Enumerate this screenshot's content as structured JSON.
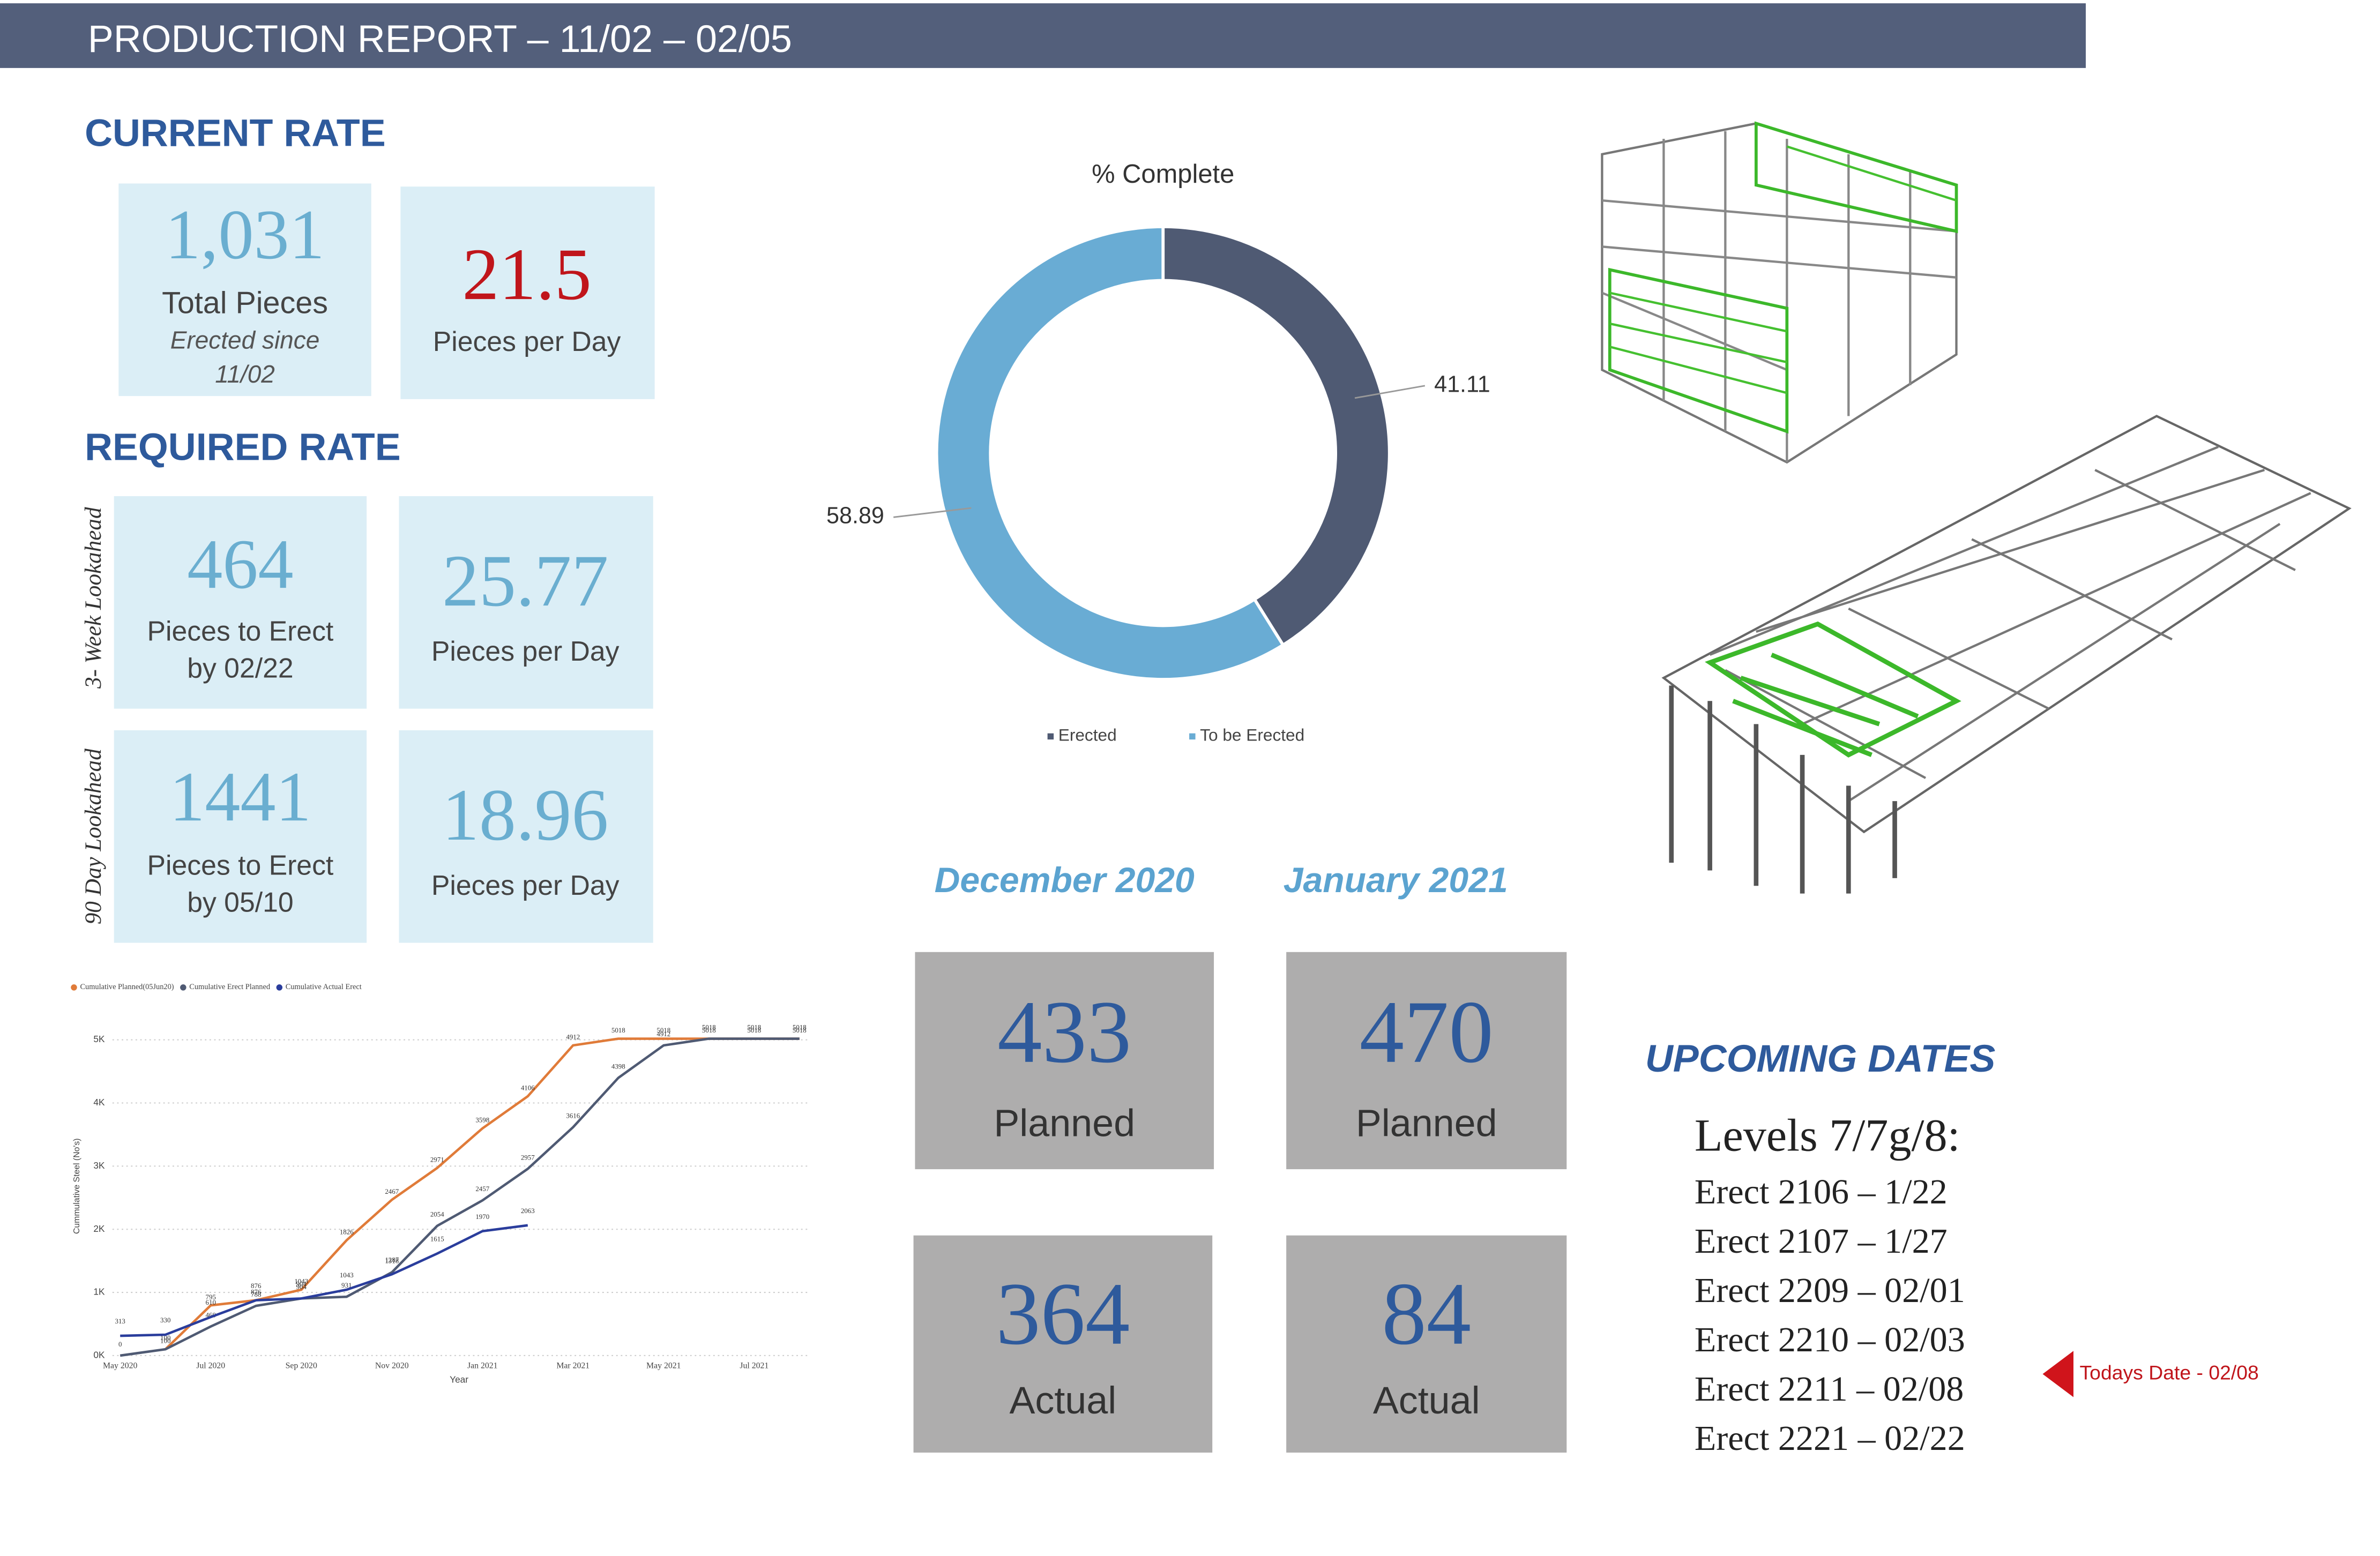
{
  "header": {
    "title": "PRODUCTION REPORT – 11/02 – 02/05"
  },
  "current_rate": {
    "title": "CURRENT RATE",
    "total": {
      "value": "1,031",
      "label": "Total Pieces",
      "note": [
        "Erected since",
        "11/02"
      ]
    },
    "per_day": {
      "value": "21.5",
      "label": "Pieces per Day"
    }
  },
  "required_rate": {
    "title": "REQUIRED RATE",
    "rows": [
      {
        "side_label": "3- Week Lookahead",
        "pieces": {
          "value": "464",
          "label": [
            "Pieces to Erect",
            "by 02/22"
          ]
        },
        "per_day": {
          "value": "25.77",
          "label": "Pieces per Day"
        }
      },
      {
        "side_label": "90 Day Lookahead",
        "pieces": {
          "value": "1441",
          "label": [
            "Pieces to Erect",
            "by 05/10"
          ]
        },
        "per_day": {
          "value": "18.96",
          "label": "Pieces per Day"
        }
      }
    ]
  },
  "monthly": [
    {
      "month": "December 2020",
      "planned": {
        "value": "433",
        "label": "Planned"
      },
      "actual": {
        "value": "364",
        "label": "Actual"
      }
    },
    {
      "month": "January 2021",
      "planned": {
        "value": "470",
        "label": "Planned"
      },
      "actual": {
        "value": "84",
        "label": "Actual"
      }
    }
  ],
  "upcoming": {
    "title": "UPCOMING DATES",
    "heading": "Levels 7/7g/8:",
    "items": [
      "Erect 2106 – 1/22",
      "Erect 2107 – 1/27",
      "Erect 2209 – 02/01",
      "Erect 2210 – 02/03",
      "Erect 2211 – 02/08",
      "Erect 2221 – 02/22"
    ],
    "today": "Todays Date - 02/08"
  },
  "chart_data": [
    {
      "type": "donut",
      "title": "% Complete",
      "categories": [
        "Erected",
        "To be Erected"
      ],
      "values": [
        41.11,
        58.89
      ],
      "colors": [
        "#4f5a73",
        "#69acd4"
      ],
      "legend": "bottom"
    },
    {
      "type": "line",
      "x_label": "Year",
      "y_label": "Cummulative Steel (No's)",
      "categories": [
        "May 2020",
        null,
        "Jul 2020",
        null,
        "Sep 2020",
        null,
        "Nov 2020",
        null,
        "Jan 2021",
        null,
        "Mar 2021",
        null,
        "May 2021",
        null,
        "Jul 2021",
        null
      ],
      "series": [
        {
          "name": "Cumulative Planned(05Jun20)",
          "color": "#e07b39",
          "values": [
            null,
            100,
            795,
            876,
            1043,
            1826,
            2467,
            2971,
            3598,
            4106,
            4912,
            5018,
            5018,
            5018,
            5018,
            5018
          ]
        },
        {
          "name": "Cumulative Erect Planned",
          "color": "#4f5a73",
          "values": [
            0,
            100,
            460,
            788,
            904,
            931,
            1318,
            2054,
            2457,
            2957,
            3616,
            4398,
            4912,
            5018,
            5018,
            5018
          ]
        },
        {
          "name": "Cumulative Actual Erect",
          "color": "#2a3d9c",
          "values": [
            313,
            330,
            610,
            876,
            904,
            1043,
            1287,
            1615,
            1970,
            2063,
            null,
            null,
            null,
            null,
            null,
            null
          ]
        }
      ],
      "ylim": [
        0,
        5000
      ],
      "yticks": [
        {
          "value": 0,
          "label": "0K"
        },
        {
          "value": 1000,
          "label": "1K"
        },
        {
          "value": 2000,
          "label": "2K"
        },
        {
          "value": 3000,
          "label": "3K"
        },
        {
          "value": 4000,
          "label": "4K"
        },
        {
          "value": 5000,
          "label": "5K"
        }
      ],
      "grid": true,
      "legend": "top-left"
    }
  ]
}
